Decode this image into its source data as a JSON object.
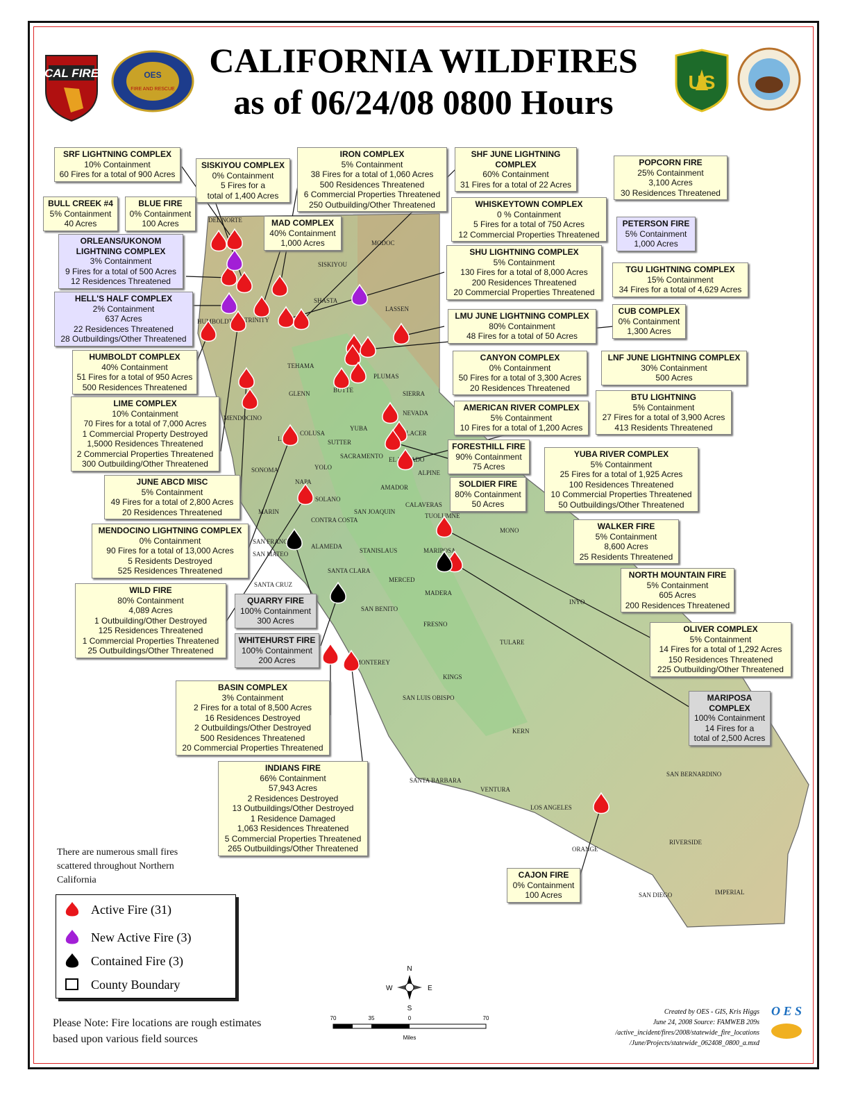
{
  "title": {
    "line1": "CALIFORNIA WILDFIRES",
    "line2": "as of 06/24/08  0800 Hours"
  },
  "logos": {
    "calfire": "CAL FIRE",
    "oes": "OES",
    "usfs": "US",
    "doi": "U.S. DEPARTMENT OF THE INTERIOR"
  },
  "colors": {
    "active": "#e8161b",
    "new_active": "#a21fd6",
    "contained": "#000000",
    "box_default": "#ffffd8",
    "box_new": "#e4e0ff",
    "box_contained": "#d8d8d8"
  },
  "fires": [
    {
      "name": "SRF LIGHTNING COMPLEX",
      "lines": [
        "10% Containment",
        "60 Fires for a total of 900 Acres"
      ],
      "status": "active"
    },
    {
      "name": "SISKIYOU COMPLEX",
      "lines": [
        "0% Containment",
        "5 Fires for a",
        "total of 1,400 Acres"
      ],
      "status": "active"
    },
    {
      "name": "IRON COMPLEX",
      "lines": [
        "5% Containment",
        "38 Fires for a total of 1,060 Acres",
        "500 Residences Threatened",
        "6 Commercial Properties Threatened",
        "250 Outbuilding/Other Threatened"
      ],
      "status": "active"
    },
    {
      "name": "SHF JUNE LIGHTNING COMPLEX",
      "lines": [
        "60% Containment",
        "31 Fires for a total of 22 Acres"
      ],
      "status": "active"
    },
    {
      "name": "POPCORN FIRE",
      "lines": [
        "25% Containment",
        "3,100 Acres",
        "30 Residences Threatened"
      ],
      "status": "active"
    },
    {
      "name": "BULL CREEK #4",
      "lines": [
        "5% Containment",
        "40 Acres"
      ],
      "status": "active"
    },
    {
      "name": "BLUE FIRE",
      "lines": [
        "0% Containment",
        "100 Acres"
      ],
      "status": "active"
    },
    {
      "name": "WHISKEYTOWN COMPLEX",
      "lines": [
        "0 % Containment",
        "5 Fires for a total of 750 Acres",
        "12 Commercial Properties Threatened"
      ],
      "status": "active"
    },
    {
      "name": "MAD COMPLEX",
      "lines": [
        "40% Containment",
        "1,000 Acres"
      ],
      "status": "active"
    },
    {
      "name": "PETERSON FIRE",
      "lines": [
        "5% Containment",
        "1,000 Acres"
      ],
      "status": "new"
    },
    {
      "name": "ORLEANS/UKONOM LIGHTNING COMPLEX",
      "lines": [
        "3% Containment",
        "9 Fires for a total of 500 Acres",
        "12 Residences Threatened"
      ],
      "status": "new"
    },
    {
      "name": "SHU LIGHTNING COMPLEX",
      "lines": [
        "5% Containment",
        "130 Fires for a total of 8,000 Acres",
        "200 Residences Threatened",
        "20 Commercial Properties Threatened"
      ],
      "status": "active"
    },
    {
      "name": "TGU LIGHTNING COMPLEX",
      "lines": [
        "15% Containment",
        "34 Fires for a total of 4,629 Acres"
      ],
      "status": "active"
    },
    {
      "name": "HELL'S HALF COMPLEX",
      "lines": [
        "2% Containment",
        "637 Acres",
        "22 Residences Threatened",
        "28 Outbuildings/Other Threatened"
      ],
      "status": "new"
    },
    {
      "name": "LMU JUNE LIGHTNING COMPLEX",
      "lines": [
        "80% Containment",
        "48 Fires for a total of 50 Acres"
      ],
      "status": "active"
    },
    {
      "name": "CUB COMPLEX",
      "lines": [
        "0% Containment",
        "1,300 Acres"
      ],
      "status": "active"
    },
    {
      "name": "HUMBOLDT COMPLEX",
      "lines": [
        "40% Containment",
        "51 Fires for a total of 950 Acres",
        "500 Residences Threatened"
      ],
      "status": "active"
    },
    {
      "name": "CANYON COMPLEX",
      "lines": [
        "0% Containment",
        "50 Fires for a total of 3,300 Acres",
        "20 Residences Threatened"
      ],
      "status": "active"
    },
    {
      "name": "LNF JUNE LIGHTNING COMPLEX",
      "lines": [
        "30% Containment",
        "500 Acres"
      ],
      "status": "active"
    },
    {
      "name": "LIME COMPLEX",
      "lines": [
        "10% Containment",
        "70 Fires for a total of 7,000 Acres",
        "1 Commercial Property Destroyed",
        "1,5000 Residences Threatened",
        "2 Commercial Properties Threatened",
        "300 Outbuilding/Other Threatened"
      ],
      "status": "active"
    },
    {
      "name": "AMERICAN RIVER COMPLEX",
      "lines": [
        "5% Containment",
        "10 Fires for a total of 1,200 Acres"
      ],
      "status": "active"
    },
    {
      "name": "BTU LIGHTNING",
      "lines": [
        "5% Containment",
        "27 Fires for a total of 3,900 Acres",
        "413 Residents Threatened"
      ],
      "status": "active"
    },
    {
      "name": "FORESTHILL FIRE",
      "lines": [
        "90% Containment",
        "75 Acres"
      ],
      "status": "active"
    },
    {
      "name": "YUBA RIVER COMPLEX",
      "lines": [
        "5% Containment",
        "25 Fires for a total of 1,925 Acres",
        "100 Residences Threatened",
        "10 Commercial Properties Threatened",
        "50 Outbuildings/Other Threatened"
      ],
      "status": "active"
    },
    {
      "name": "JUNE ABCD MISC",
      "lines": [
        "5% Containment",
        "49 Fires for a total of 2,800 Acres",
        "20 Residences Threatened"
      ],
      "status": "active"
    },
    {
      "name": "SOLDIER FIRE",
      "lines": [
        "80% Containment",
        "50 Acres"
      ],
      "status": "active"
    },
    {
      "name": "MENDOCINO LIGHTNING COMPLEX",
      "lines": [
        "0% Containment",
        "90 Fires for a total of 13,000 Acres",
        "5 Residents Destroyed",
        "525 Residences Threatened"
      ],
      "status": "active"
    },
    {
      "name": "WALKER FIRE",
      "lines": [
        "5% Containment",
        "8,600 Acres",
        "25 Residents Threatened"
      ],
      "status": "active"
    },
    {
      "name": "NORTH MOUNTAIN FIRE",
      "lines": [
        "5% Containment",
        "605 Acres",
        "200 Residences Threatened"
      ],
      "status": "active"
    },
    {
      "name": "WILD FIRE",
      "lines": [
        "80% Containment",
        "4,089 Acres",
        "1 Outbuilding/Other Destroyed",
        "125 Residences Threatened",
        "1 Commercial Properties Threatened",
        "25 Outbuildings/Other Threatened"
      ],
      "status": "active"
    },
    {
      "name": "QUARRY FIRE",
      "lines": [
        "100% Containment",
        "300 Acres"
      ],
      "status": "contained"
    },
    {
      "name": "OLIVER COMPLEX",
      "lines": [
        "5% Containment",
        "14 Fires for a total of 1,292 Acres",
        "150 Residences Threatened",
        "225  Outbuilding/Other Threatened"
      ],
      "status": "active"
    },
    {
      "name": "WHITEHURST FIRE",
      "lines": [
        "100% Containment",
        "200 Acres"
      ],
      "status": "contained"
    },
    {
      "name": "MARIPOSA COMPLEX",
      "lines": [
        "100% Containment",
        "14 Fires for a",
        "total of 2,500 Acres"
      ],
      "status": "contained"
    },
    {
      "name": "BASIN COMPLEX",
      "lines": [
        "3% Containment",
        "2 Fires for a total of 8,500 Acres",
        "16 Residences Destroyed",
        "2 Outbuildings/Other Destroyed",
        "500 Residences Threatened",
        "20 Commercial Properties Threatened"
      ],
      "status": "active"
    },
    {
      "name": "INDIANS FIRE",
      "lines": [
        "66% Containment",
        "57,943 Acres",
        "2 Residences Destroyed",
        "13 Outbuildings/Other Destroyed",
        "1 Residence Damaged",
        "1,063 Residences Threatened",
        "5 Commercial Properties Threatened",
        "265 Outbuildings/Other Threatened"
      ],
      "status": "active"
    },
    {
      "name": "CAJON FIRE",
      "lines": [
        "0% Containment",
        "100 Acres"
      ],
      "status": "active"
    }
  ],
  "counties": [
    "DEL NORTE",
    "SISKIYOU",
    "MODOC",
    "HUMBOLDT",
    "TRINITY",
    "SHASTA",
    "LASSEN",
    "TEHAMA",
    "PLUMAS",
    "GLENN",
    "BUTTE",
    "SIERRA",
    "MENDOCINO",
    "COLUSA",
    "SUTTER",
    "YUBA",
    "NEVADA",
    "PLACER",
    "LAKE",
    "EL DORADO",
    "ALPINE",
    "SONOMA",
    "YOLO",
    "NAPA",
    "SACRAMENTO",
    "AMADOR",
    "SOLANO",
    "MARIN",
    "CONTRA COSTA",
    "SAN JOAQUIN",
    "CALAVERAS",
    "TUOLUMNE",
    "MONO",
    "SAN FRANCISCO",
    "SAN MATEO",
    "ALAMEDA",
    "STANISLAUS",
    "MARIPOSA",
    "SANTA CRUZ",
    "SANTA CLARA",
    "MERCED",
    "MADERA",
    "INYO",
    "FRESNO",
    "SAN BENITO",
    "TULARE",
    "MONTEREY",
    "KINGS",
    "SAN LUIS OBISPO",
    "KERN",
    "SAN BERNARDINO",
    "SANTA BARBARA",
    "VENTURA",
    "LOS ANGELES",
    "ORANGE",
    "RIVERSIDE",
    "SAN DIEGO",
    "IMPERIAL"
  ],
  "notes": {
    "scattered": "There are numerous small fires scattered throughout Northern California",
    "please_note": "Please Note:  Fire locations are rough estimates based upon various field sources"
  },
  "legend": {
    "items": [
      {
        "label": "Active Fire  (31)",
        "type": "active"
      },
      {
        "label": "New Active Fire  (3)",
        "type": "new"
      },
      {
        "label": "Contained Fire  (3)",
        "type": "contained"
      },
      {
        "label": "County Boundary",
        "type": "county"
      }
    ]
  },
  "compass": {
    "n": "N",
    "s": "S",
    "e": "E",
    "w": "W"
  },
  "scale": {
    "ticks": [
      "70",
      "35",
      "0",
      "70"
    ],
    "unit": "Miles"
  },
  "credit": {
    "lines": [
      "Created by OES - GIS, Kris Higgs",
      "June 24, 2008 Source:  FAMWEB 209s",
      "/active_incident/fires/2008/statewide_fire_locations",
      "/June/Projects/statewide_062408_0800_a.mxd"
    ],
    "logo": "O E S"
  }
}
